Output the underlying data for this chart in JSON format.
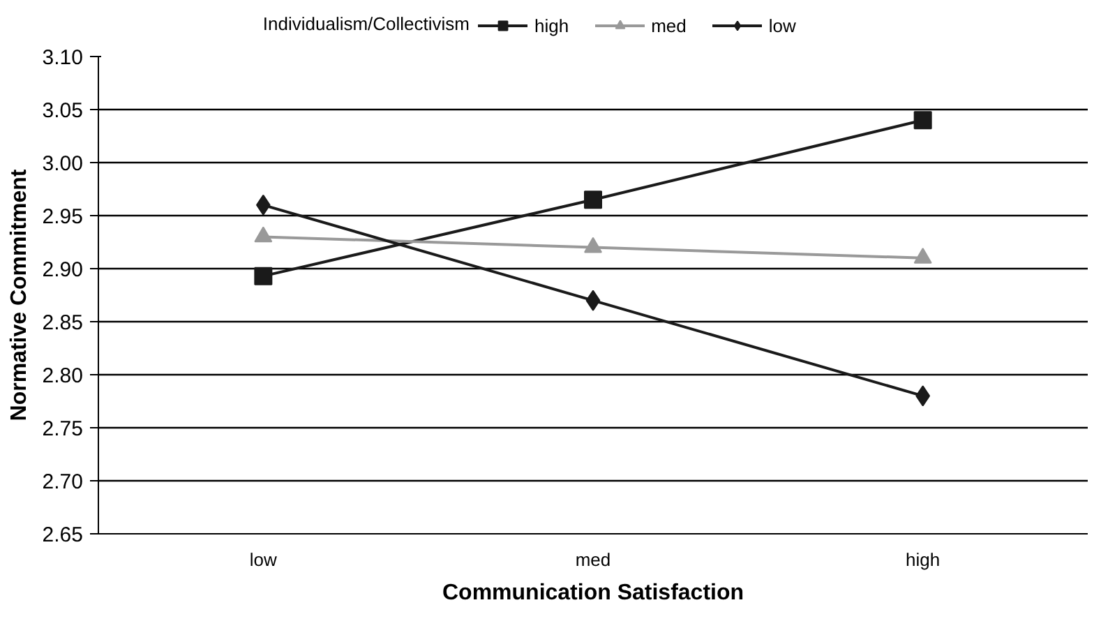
{
  "chart_data": {
    "type": "line",
    "xlabel": "Communication Satisfaction",
    "ylabel": "Normative Commitment",
    "legend_title": "Individualism/Collectivism",
    "categories": [
      "low",
      "med",
      "high"
    ],
    "series": [
      {
        "name": "high",
        "color": "#1a1a1a",
        "marker": "square",
        "values": [
          2.893,
          2.965,
          3.04
        ]
      },
      {
        "name": "med",
        "color": "#999999",
        "marker": "triangle",
        "values": [
          2.93,
          2.92,
          2.91
        ]
      },
      {
        "name": "low",
        "color": "#1a1a1a",
        "marker": "diamond",
        "values": [
          2.96,
          2.87,
          2.78
        ]
      }
    ],
    "ylim": [
      2.65,
      3.1
    ],
    "yticks": [
      2.65,
      {
        "value": 2.7,
        "label": "2.70"
      },
      2.75,
      {
        "value": 2.8,
        "label": "2.80"
      },
      2.85,
      {
        "value": 2.9,
        "label": "2.90"
      },
      2.95,
      {
        "value": 3.0,
        "label": "3.00"
      },
      3.05,
      {
        "value": 3.1,
        "label": "3.10"
      }
    ],
    "grid": "y",
    "legend": "top"
  }
}
